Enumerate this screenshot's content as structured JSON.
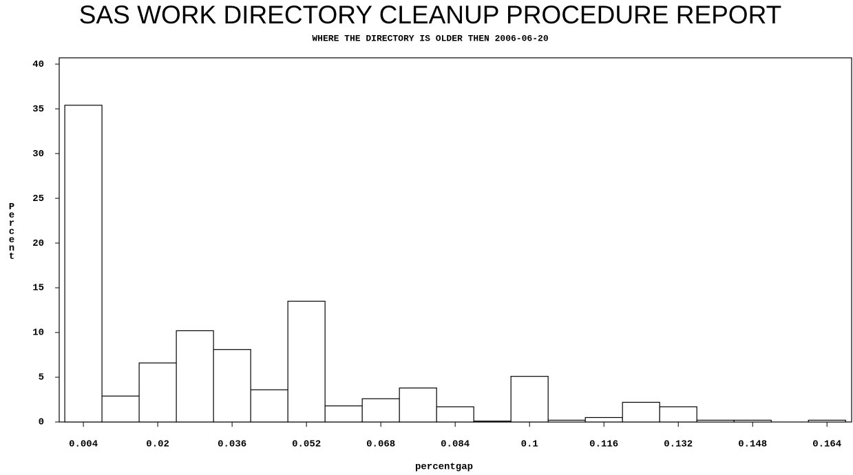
{
  "chart_data": {
    "type": "histogram",
    "title": "SAS WORK DIRECTORY CLEANUP PROCEDURE REPORT",
    "subtitle": "WHERE THE DIRECTORY IS OLDER THEN 2006-06-20",
    "x_label": "percentgap",
    "y_label": "Percent",
    "bins": [
      0,
      0.008,
      0.016,
      0.024,
      0.032,
      0.04,
      0.048,
      0.056,
      0.064,
      0.072,
      0.08,
      0.088,
      0.096,
      0.104,
      0.112,
      0.12,
      0.128,
      0.136,
      0.144,
      0.152,
      0.16,
      0.168
    ],
    "values": [
      35.4,
      2.9,
      6.6,
      10.2,
      8.1,
      3.6,
      13.5,
      1.8,
      2.6,
      3.8,
      1.7,
      0.1,
      5.1,
      0.2,
      0.5,
      2.2,
      1.7,
      0.2,
      0.2,
      0,
      0.2
    ],
    "color": "#ffffff",
    "xlim": [
      -0.0012,
      0.1693
    ],
    "xticks": [
      0.004,
      0.02,
      0.036,
      0.052,
      0.068,
      0.084,
      0.1,
      0.116,
      0.132,
      0.148,
      0.164
    ],
    "ylim": [
      0,
      40.7
    ],
    "yticks": [
      0,
      5,
      10,
      15,
      20,
      25,
      30,
      35,
      40
    ]
  }
}
